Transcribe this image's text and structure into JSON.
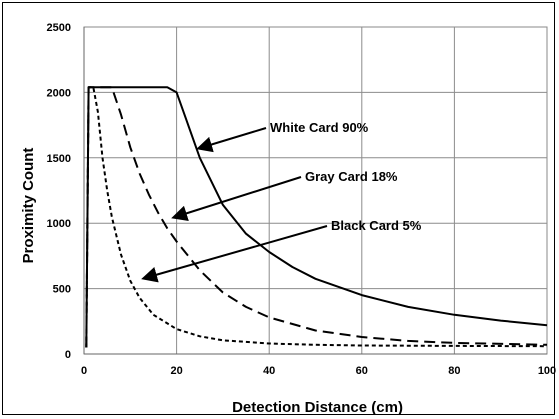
{
  "chart_data": {
    "type": "line",
    "title": "",
    "xlabel": "Detection Distance (cm)",
    "ylabel": "Proximity Count",
    "xlim": [
      0,
      100
    ],
    "ylim": [
      0,
      2500
    ],
    "xticks": [
      0,
      20,
      40,
      60,
      80,
      100
    ],
    "yticks": [
      0,
      500,
      1000,
      1500,
      2000,
      2500
    ],
    "grid": true,
    "series": [
      {
        "name": "White Card 90%",
        "style": "solid",
        "x": [
          0.5,
          1,
          5,
          10,
          15,
          18,
          20,
          22,
          25,
          30,
          35,
          40,
          45,
          50,
          60,
          70,
          80,
          90,
          100
        ],
        "y": [
          50,
          2040,
          2040,
          2040,
          2040,
          2040,
          2000,
          1800,
          1500,
          1140,
          920,
          780,
          665,
          575,
          450,
          360,
          300,
          255,
          220
        ]
      },
      {
        "name": "Gray Card 18%",
        "style": "dashed",
        "x": [
          0.5,
          1,
          4,
          6,
          8,
          10,
          12,
          14,
          16,
          18,
          20,
          25,
          30,
          35,
          40,
          50,
          60,
          70,
          80,
          100
        ],
        "y": [
          50,
          2040,
          2040,
          2040,
          1830,
          1580,
          1380,
          1220,
          1080,
          960,
          860,
          640,
          470,
          360,
          280,
          180,
          130,
          100,
          85,
          70
        ]
      },
      {
        "name": "Black Card 5%",
        "style": "dotted",
        "x": [
          0.5,
          1,
          2,
          3,
          4,
          5,
          6,
          8,
          10,
          12,
          15,
          20,
          25,
          30,
          40,
          50,
          60,
          80,
          100
        ],
        "y": [
          50,
          2040,
          2040,
          1850,
          1500,
          1250,
          1050,
          760,
          560,
          430,
          300,
          190,
          135,
          105,
          80,
          70,
          65,
          62,
          60
        ]
      }
    ],
    "annotations": [
      {
        "text": "White Card 90%",
        "points_to_series": "White Card 90%"
      },
      {
        "text": "Gray Card 18%",
        "points_to_series": "Gray Card 18%"
      },
      {
        "text": "Black Card 5%",
        "points_to_series": "Black Card 5%"
      }
    ]
  }
}
